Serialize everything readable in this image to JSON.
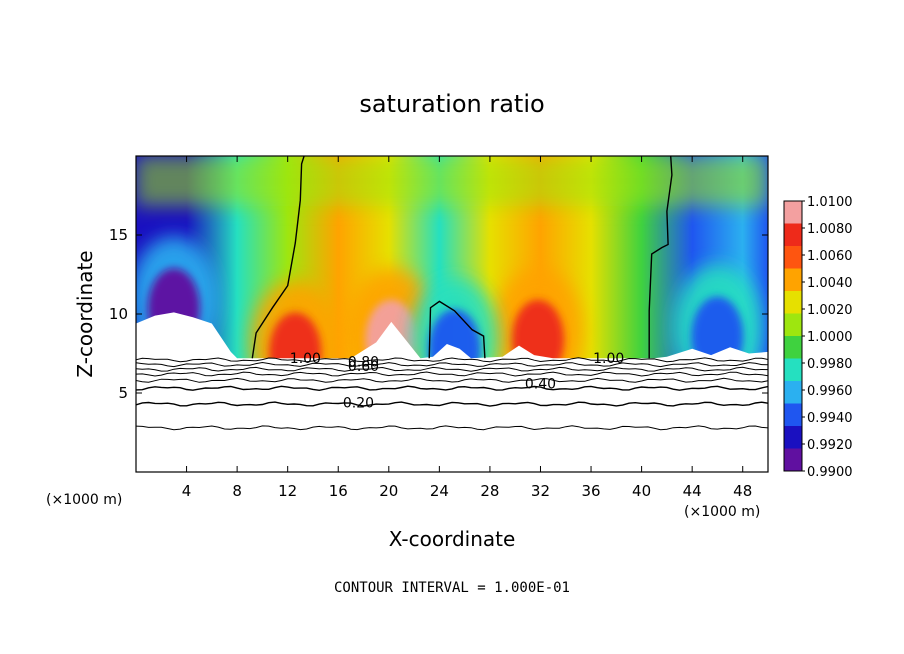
{
  "chart_data": {
    "type": "heatmap",
    "title": "saturation ratio",
    "xlabel": "X-coordinate",
    "ylabel": "Z-coordinate",
    "x_unit": "(×1000 m)",
    "y_unit": "(×1000 m)",
    "xlim": [
      0,
      50
    ],
    "ylim": [
      0,
      20
    ],
    "x_ticks": [
      4,
      8,
      12,
      16,
      20,
      24,
      28,
      32,
      36,
      40,
      44,
      48
    ],
    "y_ticks": [
      5,
      10,
      15
    ],
    "footer": "CONTOUR INTERVAL = 1.000E-01",
    "colorbar": {
      "labels": [
        "1.0100",
        "1.0080",
        "1.0060",
        "1.0040",
        "1.0020",
        "1.0000",
        "0.9980",
        "0.9960",
        "0.9940",
        "0.9920",
        "0.9900"
      ],
      "values": [
        1.01,
        1.008,
        1.006,
        1.004,
        1.002,
        1.0,
        0.998,
        0.996,
        0.994,
        0.992,
        0.99
      ],
      "colors": [
        "#f3a0a0",
        "#ee2a1a",
        "#fe5510",
        "#ffa300",
        "#e6e000",
        "#9ee60f",
        "#3fd23f",
        "#25e0c0",
        "#2bb0f0",
        "#1f56f0",
        "#1a10c0",
        "#6010a0"
      ]
    },
    "contour_labels": [
      {
        "text": "1.00",
        "x": 13.4,
        "z": 7.2
      },
      {
        "text": "0.80",
        "x": 18.0,
        "z": 7.0
      },
      {
        "text": "0.60",
        "x": 18.0,
        "z": 6.7
      },
      {
        "text": "0.40",
        "x": 32.0,
        "z": 5.6
      },
      {
        "text": "0.20",
        "x": 17.6,
        "z": 4.4
      },
      {
        "text": "1.00",
        "x": 37.4,
        "z": 7.2
      }
    ],
    "contour_lines_z": [
      7.1,
      6.8,
      6.5,
      6.2,
      5.8,
      5.3,
      4.3,
      2.8
    ],
    "background_field": {
      "x": [
        0,
        4,
        8,
        12,
        16,
        20,
        24,
        28,
        32,
        36,
        40,
        44,
        48,
        50
      ],
      "value": [
        0.9925,
        0.993,
        0.9975,
        1.0015,
        1.004,
        1.003,
        0.997,
        1.002,
        1.005,
        1.003,
        0.9995,
        0.9945,
        0.9955,
        0.995
      ]
    },
    "hotspots": [
      {
        "x": 20.2,
        "z": 9.0,
        "value": 1.009
      },
      {
        "x": 31.8,
        "z": 9.0,
        "value": 1.008
      },
      {
        "x": 12.6,
        "z": 8.2,
        "value": 1.007
      },
      {
        "x": 25.2,
        "z": 8.4,
        "value": 0.9935
      },
      {
        "x": 3.0,
        "z": 11.0,
        "value": 0.9915
      },
      {
        "x": 46.0,
        "z": 9.2,
        "value": 0.9935
      }
    ],
    "grid": false
  }
}
